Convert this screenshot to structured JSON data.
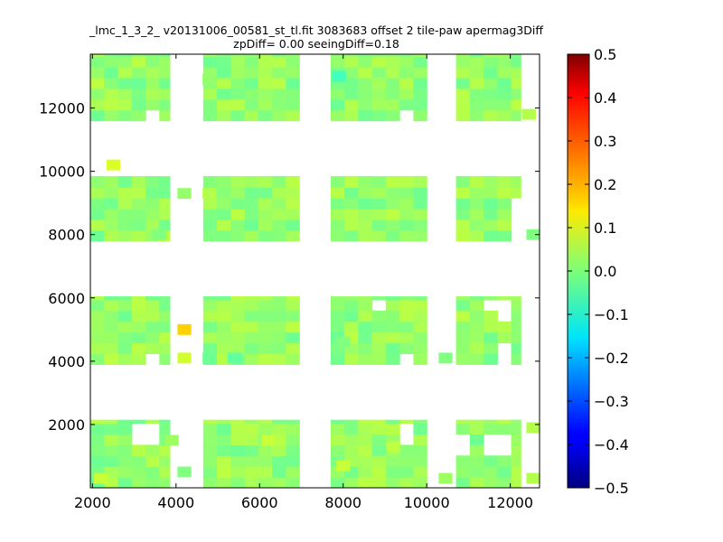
{
  "chart_data": {
    "type": "heatmap",
    "title_line1": "_lmc_1_3_2_ v20131006_00581_st_tl.fit 3083683 offset 2 tile-paw apermag3Diff",
    "title_line2": "zpDiff= 0.00 seeingDiff=0.18",
    "xlabel": "",
    "ylabel": "",
    "xlim": [
      1950,
      12700
    ],
    "ylim": [
      0,
      13700
    ],
    "xticks": [
      {
        "value": 2000,
        "label": "2000"
      },
      {
        "value": 4000,
        "label": "4000"
      },
      {
        "value": 6000,
        "label": "6000"
      },
      {
        "value": 8000,
        "label": "8000"
      },
      {
        "value": 10000,
        "label": "10000"
      },
      {
        "value": 12000,
        "label": "12000"
      }
    ],
    "yticks": [
      {
        "value": 2000,
        "label": "2000"
      },
      {
        "value": 4000,
        "label": "4000"
      },
      {
        "value": 6000,
        "label": "6000"
      },
      {
        "value": 8000,
        "label": "8000"
      },
      {
        "value": 10000,
        "label": "10000"
      },
      {
        "value": 12000,
        "label": "12000"
      }
    ],
    "colorbar": {
      "colormap": "jet",
      "range": [
        -0.5,
        0.5
      ],
      "ticks": [
        {
          "value": 0.5,
          "label": "0.5"
        },
        {
          "value": 0.4,
          "label": "0.4"
        },
        {
          "value": 0.3,
          "label": "0.3"
        },
        {
          "value": 0.2,
          "label": "0.2"
        },
        {
          "value": 0.1,
          "label": "0.1"
        },
        {
          "value": 0.0,
          "label": "0.0"
        },
        {
          "value": -0.1,
          "label": "−0.1"
        },
        {
          "value": -0.2,
          "label": "−0.2"
        },
        {
          "value": -0.3,
          "label": "−0.3"
        },
        {
          "value": -0.4,
          "label": "−0.4"
        },
        {
          "value": -0.5,
          "label": "−0.5"
        }
      ]
    },
    "grid": false,
    "cell_size": [
      330,
      340
    ],
    "x_columns": [
      {
        "from": 1950,
        "to": 3850
      },
      {
        "from": 4650,
        "to": 6950
      },
      {
        "from": 7700,
        "to": 10000
      },
      {
        "from": 10700,
        "to": 12250
      }
    ],
    "y_bands": [
      {
        "from": 0,
        "to": 2150
      },
      {
        "from": 3900,
        "to": 6050
      },
      {
        "from": 7800,
        "to": 9850
      },
      {
        "from": 11600,
        "to": 13700
      }
    ],
    "base_value": 0.02,
    "extra_cells": [
      {
        "x": 4200,
        "y": 5000,
        "value": 0.17
      },
      {
        "x": 4200,
        "y": 4100,
        "value": 0.08
      },
      {
        "x": 4200,
        "y": 500,
        "value": 0.0
      },
      {
        "x": 3900,
        "y": 1500,
        "value": 0.03
      },
      {
        "x": 2500,
        "y": 10200,
        "value": 0.09
      },
      {
        "x": 4200,
        "y": 9300,
        "value": 0.02
      },
      {
        "x": 4800,
        "y": 12900,
        "value": 0.02
      },
      {
        "x": 4800,
        "y": 9300,
        "value": 0.05
      },
      {
        "x": 4800,
        "y": 4100,
        "value": -0.02
      },
      {
        "x": 10450,
        "y": 4100,
        "value": 0.0
      },
      {
        "x": 10450,
        "y": 300,
        "value": 0.03
      },
      {
        "x": 12550,
        "y": 300,
        "value": 0.05
      },
      {
        "x": 12550,
        "y": 1900,
        "value": 0.05
      },
      {
        "x": 12550,
        "y": 8000,
        "value": 0.0
      },
      {
        "x": 12450,
        "y": 11800,
        "value": 0.05
      }
    ],
    "special_cells": [
      {
        "x": 7900,
        "y": 13000,
        "value": -0.06
      },
      {
        "x": 8000,
        "y": 4600,
        "value": 0.0
      },
      {
        "x": 9200,
        "y": 1300,
        "value": 0.06
      },
      {
        "x": 6200,
        "y": 1500,
        "value": 0.07
      },
      {
        "x": 8000,
        "y": 700,
        "value": 0.07
      },
      {
        "x": 5400,
        "y": 4100,
        "value": -0.03
      },
      {
        "x": 3600,
        "y": 8000,
        "value": 0.0
      },
      {
        "x": 2200,
        "y": 300,
        "value": 0.07
      }
    ],
    "missing_cells": [
      {
        "x": 3550,
        "y": 11800
      },
      {
        "x": 3250,
        "y": 1500
      },
      {
        "x": 3550,
        "y": 1500
      },
      {
        "x": 3550,
        "y": 1900
      },
      {
        "x": 3250,
        "y": 1900
      },
      {
        "x": 3550,
        "y": 4100
      },
      {
        "x": 9650,
        "y": 11800
      },
      {
        "x": 9350,
        "y": 1900
      },
      {
        "x": 9650,
        "y": 1900
      },
      {
        "x": 9650,
        "y": 1500
      },
      {
        "x": 9350,
        "y": 5800
      },
      {
        "x": 8950,
        "y": 5800
      },
      {
        "x": 9650,
        "y": 4100
      },
      {
        "x": 11950,
        "y": 4400
      },
      {
        "x": 11950,
        "y": 4100
      },
      {
        "x": 11950,
        "y": 5400
      },
      {
        "x": 11950,
        "y": 5800
      },
      {
        "x": 11550,
        "y": 5800
      },
      {
        "x": 11650,
        "y": 1400
      },
      {
        "x": 11950,
        "y": 1400
      },
      {
        "x": 11650,
        "y": 1100
      },
      {
        "x": 11950,
        "y": 1100
      },
      {
        "x": 10950,
        "y": 1400
      },
      {
        "x": 10750,
        "y": 1100
      },
      {
        "x": 12050,
        "y": 9500
      },
      {
        "x": 12050,
        "y": 9100
      },
      {
        "x": 12050,
        "y": 8700
      },
      {
        "x": 12050,
        "y": 8000
      },
      {
        "x": 12050,
        "y": 8300
      }
    ]
  }
}
